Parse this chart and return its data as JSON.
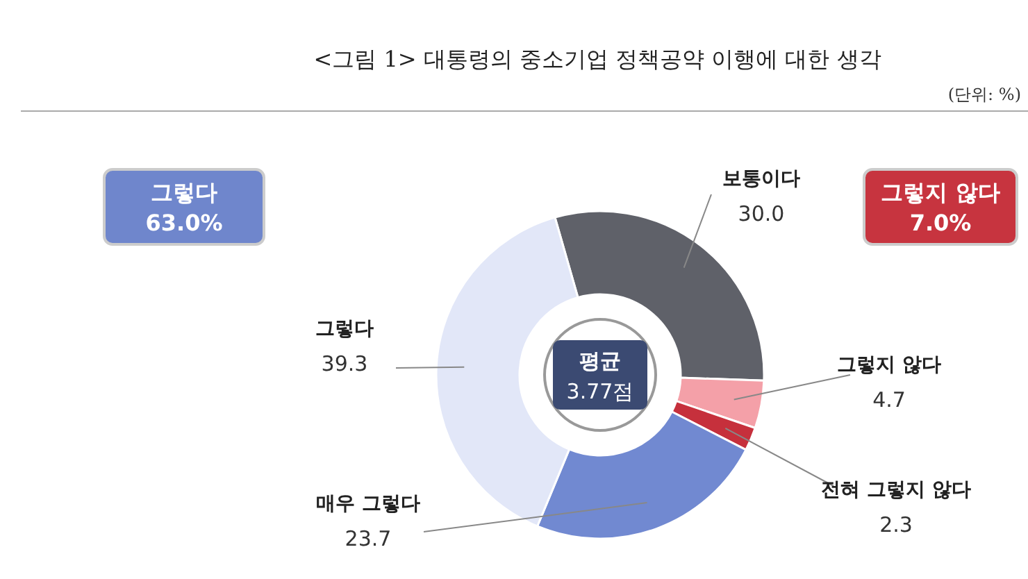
{
  "chart_data": {
    "type": "donut",
    "title": "<그림 1> 대통령의 중소기업 정책공약 이행에 대한 생각",
    "categories": [
      "보통이다",
      "그렇지 않다",
      "전혀 그렇지 않다",
      "매우 그렇다",
      "그렇다"
    ],
    "values": [
      30.0,
      4.7,
      2.3,
      23.7,
      39.3
    ],
    "colors": [
      "#5f6169",
      "#f4a0a8",
      "#c6303c",
      "#7189d1",
      "#e2e7f8"
    ],
    "value_labels": [
      "30.0",
      "4.7",
      "2.3",
      "23.7",
      "39.3"
    ],
    "annotations": [
      "(단위: %)",
      "평균",
      "3.77점",
      "그렇다",
      "63.0%",
      "그렇지 않다",
      "7.0%"
    ]
  }
}
